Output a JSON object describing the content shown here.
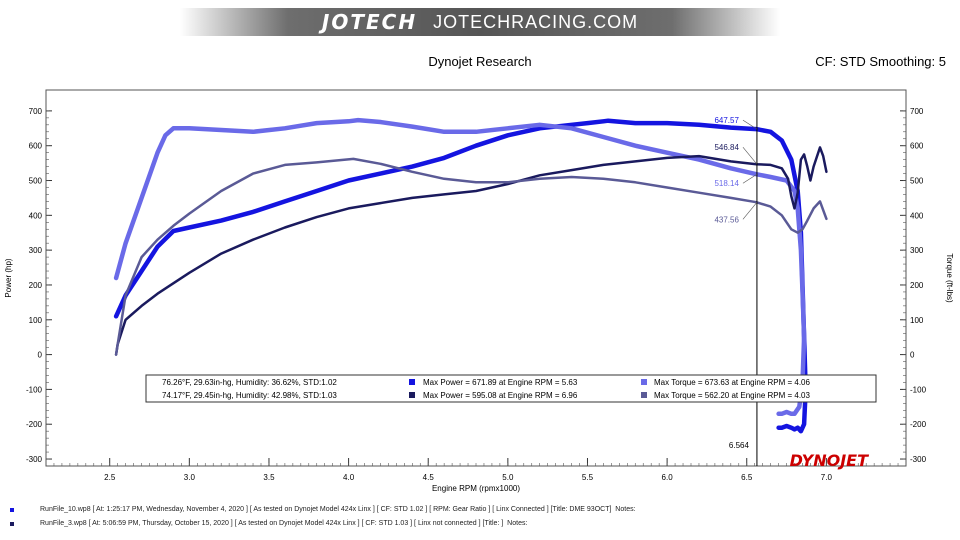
{
  "header": {
    "logo_text": "JOTECH",
    "site_text": "JOTECHRACING.COM"
  },
  "title": "Dynojet Research",
  "cf_label": "CF: STD Smoothing: 5",
  "brand": "DYNOJET",
  "colors": {
    "power_run1": "#1414e0",
    "torque_run1": "#6a6ae8",
    "power_run2": "#1a1a5e",
    "torque_run2": "#5a5a96",
    "brand_red": "#cc0000"
  },
  "chart_data": {
    "type": "line",
    "xlabel": "Engine RPM (rpmx1000)",
    "ylabel": "Power (hp)",
    "ylabel_right": "Torque (ft-lbs)",
    "xlim": [
      2.1,
      7.5
    ],
    "ylim": [
      -320,
      760
    ],
    "x_ticks": [
      "2.5",
      "3.0",
      "3.5",
      "4.0",
      "4.5",
      "5.0",
      "5.5",
      "6.0",
      "6.5",
      "7.0"
    ],
    "y_ticks": [
      "700",
      "600",
      "500",
      "400",
      "300",
      "200",
      "100",
      "0",
      "-100",
      "-200",
      "-300"
    ],
    "grid": false,
    "cursor": {
      "x": 6.564,
      "label": "6.564"
    },
    "cursor_values": [
      {
        "value": "546.84",
        "y": 546.84,
        "series": "power_run2"
      },
      {
        "value": "647.57",
        "y": 647.57,
        "series": "power_run1"
      },
      {
        "value": "518.14",
        "y": 518.14,
        "series": "torque_run1"
      },
      {
        "value": "437.56",
        "y": 437.56,
        "series": "torque_run2"
      }
    ],
    "legend": {
      "placement": "bottom-center",
      "rows": [
        {
          "conditions": "76.26°F, 29.63in-hg, Humidity: 36.62%, STD:1.02",
          "power": "Max Power = 671.89 at Engine RPM = 5.63",
          "torque": "Max Torque = 673.63 at Engine RPM = 4.06"
        },
        {
          "conditions": "74.17°F, 29.45in-hg, Humidity: 42.98%, STD:1.03",
          "power": "Max Power = 595.08 at Engine RPM = 6.96",
          "torque": "Max Torque = 562.20 at Engine RPM = 4.03"
        }
      ]
    },
    "series": [
      {
        "key": "power_run1",
        "width": 4.5,
        "x": [
          2.54,
          2.6,
          2.7,
          2.8,
          2.9,
          3.0,
          3.2,
          3.4,
          3.6,
          3.8,
          4.0,
          4.2,
          4.4,
          4.6,
          4.8,
          5.0,
          5.2,
          5.4,
          5.5,
          5.6,
          5.63,
          5.8,
          6.0,
          6.2,
          6.4,
          6.56,
          6.65,
          6.72,
          6.78,
          6.82,
          6.84,
          6.85,
          6.86,
          6.87,
          6.86,
          6.84,
          6.82,
          6.8,
          6.78,
          6.75,
          6.72,
          6.7
        ],
        "y": [
          110,
          170,
          240,
          310,
          355,
          365,
          385,
          410,
          440,
          470,
          500,
          520,
          540,
          565,
          600,
          630,
          650,
          660,
          665,
          670,
          671.9,
          665,
          665,
          660,
          652,
          647.6,
          640,
          615,
          560,
          470,
          350,
          200,
          50,
          -100,
          -200,
          -220,
          -210,
          -215,
          -210,
          -205,
          -210,
          -210
        ]
      },
      {
        "key": "torque_run1",
        "width": 4.5,
        "x": [
          2.54,
          2.6,
          2.7,
          2.8,
          2.85,
          2.9,
          3.0,
          3.2,
          3.4,
          3.6,
          3.8,
          4.0,
          4.06,
          4.2,
          4.4,
          4.6,
          4.8,
          5.0,
          5.2,
          5.4,
          5.6,
          5.8,
          6.0,
          6.2,
          6.4,
          6.56,
          6.65,
          6.75,
          6.8,
          6.82,
          6.84,
          6.85,
          6.86,
          6.85,
          6.83,
          6.8,
          6.78,
          6.75,
          6.72,
          6.7
        ],
        "y": [
          220,
          320,
          450,
          580,
          630,
          650,
          650,
          645,
          640,
          650,
          665,
          670,
          673.6,
          668,
          655,
          640,
          640,
          650,
          660,
          650,
          625,
          600,
          580,
          560,
          535,
          518.1,
          510,
          500,
          470,
          420,
          300,
          180,
          50,
          -80,
          -150,
          -170,
          -170,
          -165,
          -170,
          -170
        ]
      },
      {
        "key": "power_run2",
        "width": 2.5,
        "x": [
          2.54,
          2.55,
          2.6,
          2.7,
          2.8,
          3.0,
          3.2,
          3.4,
          3.6,
          3.8,
          4.0,
          4.2,
          4.4,
          4.6,
          4.8,
          5.0,
          5.2,
          5.4,
          5.6,
          5.8,
          6.0,
          6.2,
          6.4,
          6.56,
          6.65,
          6.72,
          6.76,
          6.78,
          6.8,
          6.82,
          6.84,
          6.86,
          6.88,
          6.9,
          6.92,
          6.96,
          6.98,
          7.0
        ],
        "y": [
          0,
          30,
          100,
          140,
          175,
          235,
          290,
          330,
          365,
          395,
          420,
          435,
          450,
          460,
          470,
          490,
          515,
          530,
          545,
          555,
          565,
          570,
          555,
          546.8,
          545,
          535,
          505,
          455,
          420,
          465,
          560,
          575,
          540,
          500,
          540,
          595,
          570,
          525
        ]
      },
      {
        "key": "torque_run2",
        "width": 2.5,
        "x": [
          2.54,
          2.55,
          2.6,
          2.7,
          2.8,
          2.9,
          3.0,
          3.2,
          3.4,
          3.6,
          3.8,
          4.03,
          4.2,
          4.4,
          4.6,
          4.8,
          5.0,
          5.2,
          5.4,
          5.6,
          5.8,
          6.0,
          6.2,
          6.4,
          6.56,
          6.65,
          6.72,
          6.78,
          6.82,
          6.85,
          6.88,
          6.92,
          6.96,
          7.0
        ],
        "y": [
          0,
          30,
          170,
          280,
          330,
          370,
          405,
          470,
          520,
          545,
          552,
          562.2,
          548,
          525,
          505,
          495,
          495,
          505,
          510,
          505,
          495,
          480,
          465,
          450,
          437.6,
          425,
          400,
          360,
          350,
          360,
          385,
          420,
          440,
          390
        ]
      }
    ]
  },
  "footer": [
    {
      "text": "RunFile_10.wp8 [ At: 1:25:17 PM, Wednesday, November 4, 2020 ] [ As tested on Dynojet Model 424x Linx ] [ CF: STD 1.02 ] [ RPM: Gear Ratio ] [ Linx Connected ] [Title: DME 93OCT]  Notes:"
    },
    {
      "text": "RunFile_3.wp8 [ At: 5:06:59 PM, Thursday, October 15, 2020 ] [ As tested on Dynojet Model 424x Linx ] [ CF: STD 1.03 ] [ Linx not connected ] [Title: ]  Notes:"
    }
  ]
}
